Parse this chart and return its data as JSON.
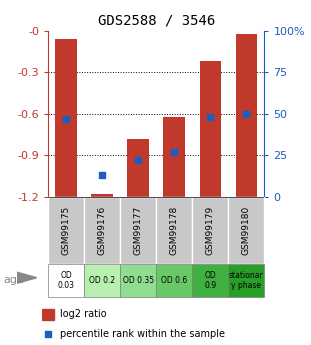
{
  "title": "GDS2588 / 3546",
  "samples": [
    "GSM99175",
    "GSM99176",
    "GSM99177",
    "GSM99178",
    "GSM99179",
    "GSM99180"
  ],
  "log2_ratios": [
    -0.06,
    -1.18,
    -0.78,
    -0.62,
    -0.22,
    -0.02
  ],
  "percentile_ranks": [
    47,
    13,
    22,
    27,
    48,
    50
  ],
  "ylim": [
    -1.2,
    0
  ],
  "yticks": [
    0,
    -0.3,
    -0.6,
    -0.9,
    -1.2
  ],
  "ytick_labels": [
    "-0",
    "-0.3",
    "-0.6",
    "-0.9",
    "-1.2"
  ],
  "right_yticks": [
    0,
    25,
    50,
    75,
    100
  ],
  "right_ytick_labels": [
    "0",
    "25",
    "50",
    "75",
    "100%"
  ],
  "bar_color": "#c0392b",
  "dot_color": "#1a5ec0",
  "age_labels": [
    "OD\n0.03",
    "OD 0.2",
    "OD 0.35",
    "OD 0.6",
    "OD\n0.9",
    "stationar\ny phase"
  ],
  "age_bg_colors": [
    "#ffffff",
    "#b8f0b0",
    "#90dc90",
    "#68c868",
    "#40b040",
    "#28a028"
  ],
  "sample_bg_color": "#c8c8c8",
  "left_axis_color": "#c0392b",
  "right_axis_color": "#1a5ec0",
  "figsize": [
    3.11,
    3.45
  ],
  "dpi": 100
}
